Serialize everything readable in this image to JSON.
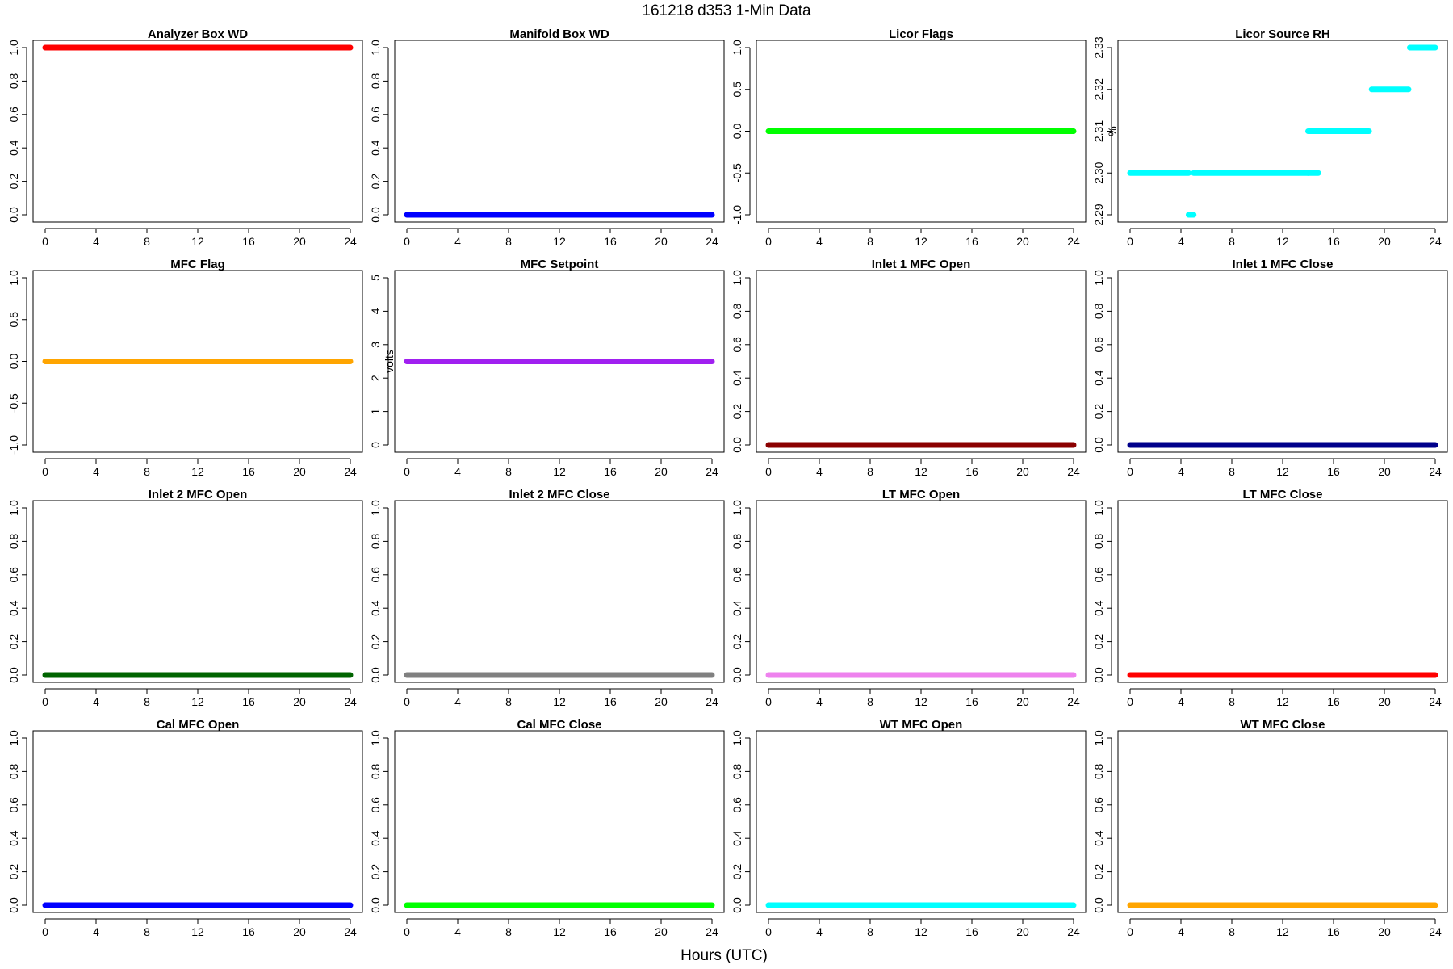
{
  "page": {
    "title": "161218   d353   1-Min Data",
    "xlabel": "Hours (UTC)"
  },
  "chart_data": [
    {
      "type": "scatter",
      "title": "Analyzer Box WD",
      "ylabel": "",
      "color": "#ff0000",
      "xlim": [
        0,
        24
      ],
      "xticks": [
        0,
        4,
        8,
        12,
        16,
        20,
        24
      ],
      "ylim": [
        0,
        1
      ],
      "yticks": [
        0,
        0.2,
        0.4,
        0.6,
        0.8,
        1
      ],
      "ytick_labels": [
        "0.0",
        "0.2",
        "0.4",
        "0.6",
        "0.8",
        "1.0"
      ],
      "segments": [
        {
          "x": [
            0,
            24
          ],
          "y": 1
        }
      ]
    },
    {
      "type": "scatter",
      "title": "Manifold Box WD",
      "ylabel": "",
      "color": "#0000ff",
      "xlim": [
        0,
        24
      ],
      "xticks": [
        0,
        4,
        8,
        12,
        16,
        20,
        24
      ],
      "ylim": [
        0,
        1
      ],
      "yticks": [
        0,
        0.2,
        0.4,
        0.6,
        0.8,
        1
      ],
      "ytick_labels": [
        "0.0",
        "0.2",
        "0.4",
        "0.6",
        "0.8",
        "1.0"
      ],
      "segments": [
        {
          "x": [
            0,
            24
          ],
          "y": 0
        }
      ]
    },
    {
      "type": "scatter",
      "title": "Licor Flags",
      "ylabel": "",
      "color": "#00ff00",
      "xlim": [
        0,
        24
      ],
      "xticks": [
        0,
        4,
        8,
        12,
        16,
        20,
        24
      ],
      "ylim": [
        -1,
        1
      ],
      "yticks": [
        -1,
        -0.5,
        0,
        0.5,
        1
      ],
      "ytick_labels": [
        "-1.0",
        "-0.5",
        "0.0",
        "0.5",
        "1.0"
      ],
      "segments": [
        {
          "x": [
            0,
            24
          ],
          "y": 0
        }
      ]
    },
    {
      "type": "scatter",
      "title": "Licor Source RH",
      "ylabel": "%",
      "color": "#00ffff",
      "xlim": [
        0,
        24
      ],
      "xticks": [
        0,
        4,
        8,
        12,
        16,
        20,
        24
      ],
      "ylim": [
        2.29,
        2.33
      ],
      "yticks": [
        2.29,
        2.3,
        2.31,
        2.32,
        2.33
      ],
      "ytick_labels": [
        "2.29",
        "2.30",
        "2.31",
        "2.32",
        "2.33"
      ],
      "segments": [
        {
          "x": [
            0,
            4.6
          ],
          "y": 2.3
        },
        {
          "x": [
            4.6,
            5.0
          ],
          "y": 2.29
        },
        {
          "x": [
            5.0,
            14.0
          ],
          "y": 2.3
        },
        {
          "x": [
            14.0,
            14.8
          ],
          "y": 2.3
        },
        {
          "x": [
            14.0,
            18.8
          ],
          "y": 2.31
        },
        {
          "x": [
            19.0,
            21.9
          ],
          "y": 2.32
        },
        {
          "x": [
            22.0,
            24
          ],
          "y": 2.33
        }
      ]
    },
    {
      "type": "scatter",
      "title": "MFC Flag",
      "ylabel": "",
      "color": "#ffa500",
      "xlim": [
        0,
        24
      ],
      "xticks": [
        0,
        4,
        8,
        12,
        16,
        20,
        24
      ],
      "ylim": [
        -1,
        1
      ],
      "yticks": [
        -1,
        -0.5,
        0,
        0.5,
        1
      ],
      "ytick_labels": [
        "-1.0",
        "-0.5",
        "0.0",
        "0.5",
        "1.0"
      ],
      "segments": [
        {
          "x": [
            0,
            24
          ],
          "y": 0
        }
      ]
    },
    {
      "type": "scatter",
      "title": "MFC Setpoint",
      "ylabel": "volts",
      "color": "#a020f0",
      "xlim": [
        0,
        24
      ],
      "xticks": [
        0,
        4,
        8,
        12,
        16,
        20,
        24
      ],
      "ylim": [
        0,
        5
      ],
      "yticks": [
        0,
        1,
        2,
        3,
        4,
        5
      ],
      "ytick_labels": [
        "0",
        "1",
        "2",
        "3",
        "4",
        "5"
      ],
      "segments": [
        {
          "x": [
            0,
            24
          ],
          "y": 2.5
        }
      ]
    },
    {
      "type": "scatter",
      "title": "Inlet 1 MFC Open",
      "ylabel": "",
      "color": "#8b0000",
      "xlim": [
        0,
        24
      ],
      "xticks": [
        0,
        4,
        8,
        12,
        16,
        20,
        24
      ],
      "ylim": [
        0,
        1
      ],
      "yticks": [
        0,
        0.2,
        0.4,
        0.6,
        0.8,
        1
      ],
      "ytick_labels": [
        "0.0",
        "0.2",
        "0.4",
        "0.6",
        "0.8",
        "1.0"
      ],
      "segments": [
        {
          "x": [
            0,
            24
          ],
          "y": 0
        }
      ]
    },
    {
      "type": "scatter",
      "title": "Inlet 1 MFC Close",
      "ylabel": "",
      "color": "#00008b",
      "xlim": [
        0,
        24
      ],
      "xticks": [
        0,
        4,
        8,
        12,
        16,
        20,
        24
      ],
      "ylim": [
        0,
        1
      ],
      "yticks": [
        0,
        0.2,
        0.4,
        0.6,
        0.8,
        1
      ],
      "ytick_labels": [
        "0.0",
        "0.2",
        "0.4",
        "0.6",
        "0.8",
        "1.0"
      ],
      "segments": [
        {
          "x": [
            0,
            24
          ],
          "y": 0
        }
      ]
    },
    {
      "type": "scatter",
      "title": "Inlet 2 MFC Open",
      "ylabel": "",
      "color": "#006400",
      "xlim": [
        0,
        24
      ],
      "xticks": [
        0,
        4,
        8,
        12,
        16,
        20,
        24
      ],
      "ylim": [
        0,
        1
      ],
      "yticks": [
        0,
        0.2,
        0.4,
        0.6,
        0.8,
        1
      ],
      "ytick_labels": [
        "0.0",
        "0.2",
        "0.4",
        "0.6",
        "0.8",
        "1.0"
      ],
      "segments": [
        {
          "x": [
            0,
            24
          ],
          "y": 0
        }
      ]
    },
    {
      "type": "scatter",
      "title": "Inlet 2 MFC Close",
      "ylabel": "",
      "color": "#808080",
      "xlim": [
        0,
        24
      ],
      "xticks": [
        0,
        4,
        8,
        12,
        16,
        20,
        24
      ],
      "ylim": [
        0,
        1
      ],
      "yticks": [
        0,
        0.2,
        0.4,
        0.6,
        0.8,
        1
      ],
      "ytick_labels": [
        "0.0",
        "0.2",
        "0.4",
        "0.6",
        "0.8",
        "1.0"
      ],
      "segments": [
        {
          "x": [
            0,
            24
          ],
          "y": 0
        }
      ]
    },
    {
      "type": "scatter",
      "title": "LT MFC Open",
      "ylabel": "",
      "color": "#ee82ee",
      "xlim": [
        0,
        24
      ],
      "xticks": [
        0,
        4,
        8,
        12,
        16,
        20,
        24
      ],
      "ylim": [
        0,
        1
      ],
      "yticks": [
        0,
        0.2,
        0.4,
        0.6,
        0.8,
        1
      ],
      "ytick_labels": [
        "0.0",
        "0.2",
        "0.4",
        "0.6",
        "0.8",
        "1.0"
      ],
      "segments": [
        {
          "x": [
            0,
            24
          ],
          "y": 0
        }
      ]
    },
    {
      "type": "scatter",
      "title": "LT MFC Close",
      "ylabel": "",
      "color": "#ff0000",
      "xlim": [
        0,
        24
      ],
      "xticks": [
        0,
        4,
        8,
        12,
        16,
        20,
        24
      ],
      "ylim": [
        0,
        1
      ],
      "yticks": [
        0,
        0.2,
        0.4,
        0.6,
        0.8,
        1
      ],
      "ytick_labels": [
        "0.0",
        "0.2",
        "0.4",
        "0.6",
        "0.8",
        "1.0"
      ],
      "segments": [
        {
          "x": [
            0,
            24
          ],
          "y": 0
        }
      ]
    },
    {
      "type": "scatter",
      "title": "Cal MFC Open",
      "ylabel": "",
      "color": "#0000ff",
      "xlim": [
        0,
        24
      ],
      "xticks": [
        0,
        4,
        8,
        12,
        16,
        20,
        24
      ],
      "ylim": [
        0,
        1
      ],
      "yticks": [
        0,
        0.2,
        0.4,
        0.6,
        0.8,
        1
      ],
      "ytick_labels": [
        "0.0",
        "0.2",
        "0.4",
        "0.6",
        "0.8",
        "1.0"
      ],
      "segments": [
        {
          "x": [
            0,
            24
          ],
          "y": 0
        }
      ]
    },
    {
      "type": "scatter",
      "title": "Cal MFC Close",
      "ylabel": "",
      "color": "#00ff00",
      "xlim": [
        0,
        24
      ],
      "xticks": [
        0,
        4,
        8,
        12,
        16,
        20,
        24
      ],
      "ylim": [
        0,
        1
      ],
      "yticks": [
        0,
        0.2,
        0.4,
        0.6,
        0.8,
        1
      ],
      "ytick_labels": [
        "0.0",
        "0.2",
        "0.4",
        "0.6",
        "0.8",
        "1.0"
      ],
      "segments": [
        {
          "x": [
            0,
            24
          ],
          "y": 0
        }
      ]
    },
    {
      "type": "scatter",
      "title": "WT MFC Open",
      "ylabel": "",
      "color": "#00ffff",
      "xlim": [
        0,
        24
      ],
      "xticks": [
        0,
        4,
        8,
        12,
        16,
        20,
        24
      ],
      "ylim": [
        0,
        1
      ],
      "yticks": [
        0,
        0.2,
        0.4,
        0.6,
        0.8,
        1
      ],
      "ytick_labels": [
        "0.0",
        "0.2",
        "0.4",
        "0.6",
        "0.8",
        "1.0"
      ],
      "segments": [
        {
          "x": [
            0,
            24
          ],
          "y": 0
        }
      ]
    },
    {
      "type": "scatter",
      "title": "WT MFC Close",
      "ylabel": "",
      "color": "#ffa500",
      "xlim": [
        0,
        24
      ],
      "xticks": [
        0,
        4,
        8,
        12,
        16,
        20,
        24
      ],
      "ylim": [
        0,
        1
      ],
      "yticks": [
        0,
        0.2,
        0.4,
        0.6,
        0.8,
        1
      ],
      "ytick_labels": [
        "0.0",
        "0.2",
        "0.4",
        "0.6",
        "0.8",
        "1.0"
      ],
      "segments": [
        {
          "x": [
            0,
            24
          ],
          "y": 0
        }
      ]
    }
  ]
}
